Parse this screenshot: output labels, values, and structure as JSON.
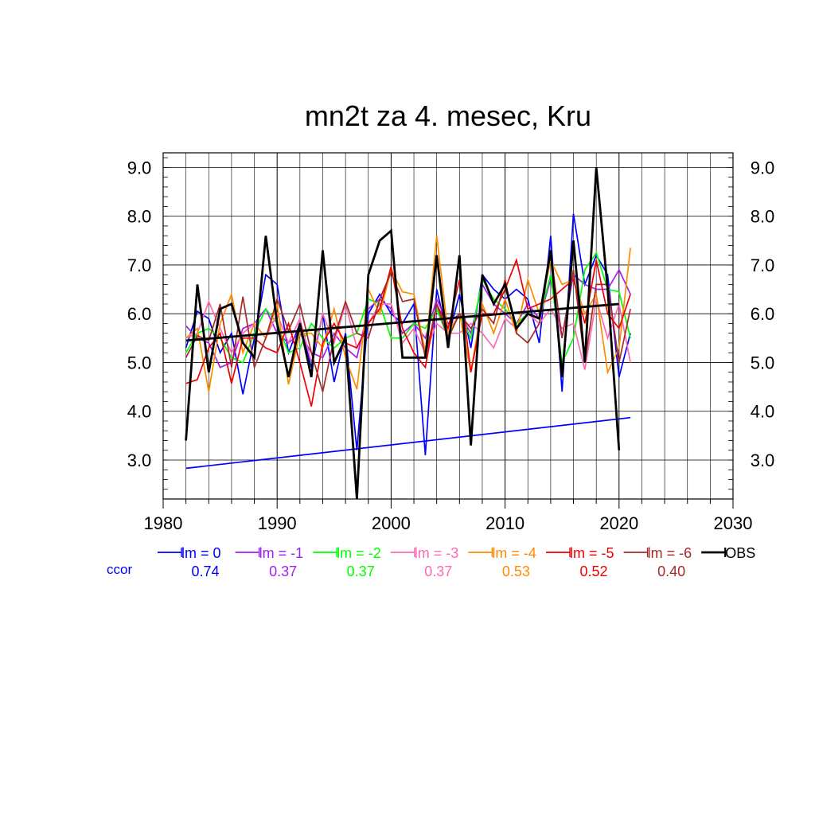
{
  "chart_data": {
    "type": "line",
    "title": "mn2t za 4. mesec, Kru",
    "xlabel": "",
    "ylabel": "",
    "xlim": [
      1980,
      2030
    ],
    "ylim": [
      2.2,
      9.3
    ],
    "x_ticks": [
      "1980",
      "1990",
      "2000",
      "2010",
      "2020",
      "2030"
    ],
    "y_ticks": [
      "3.0",
      "4.0",
      "5.0",
      "6.0",
      "7.0",
      "8.0",
      "9.0"
    ],
    "grid": true,
    "legend_position": "bottom",
    "ccor_label": "ccor",
    "x": [
      1982,
      1983,
      1984,
      1985,
      1986,
      1987,
      1988,
      1989,
      1990,
      1991,
      1992,
      1993,
      1994,
      1995,
      1996,
      1997,
      1998,
      1999,
      2000,
      2001,
      2002,
      2003,
      2004,
      2005,
      2006,
      2007,
      2008,
      2009,
      2010,
      2011,
      2012,
      2013,
      2014,
      2015,
      2016,
      2017,
      2018,
      2019,
      2020,
      2021
    ],
    "series": [
      {
        "name": "lm = 0",
        "color": "#0000ff",
        "ccor": "0.74",
        "values": [
          5.3,
          6.05,
          5.9,
          5.2,
          5.6,
          4.35,
          5.5,
          6.8,
          6.6,
          5.2,
          5.8,
          4.9,
          6.0,
          4.6,
          5.6,
          3.2,
          6.0,
          6.4,
          6.0,
          5.8,
          6.2,
          3.1,
          6.5,
          5.5,
          6.4,
          5.3,
          6.8,
          6.5,
          6.3,
          6.5,
          6.3,
          5.4,
          7.6,
          4.4,
          8.05,
          6.6,
          7.2,
          6.8,
          4.7,
          5.6
        ],
        "trend": [
          2.83,
          3.87
        ]
      },
      {
        "name": "lm = -1",
        "color": "#a020f0",
        "ccor": "0.37",
        "values": [
          5.75,
          5.5,
          5.4,
          4.9,
          5.0,
          5.7,
          5.8,
          6.1,
          5.6,
          5.4,
          5.6,
          5.2,
          5.1,
          5.6,
          5.3,
          5.1,
          6.1,
          6.3,
          6.1,
          5.6,
          5.8,
          5.5,
          6.3,
          5.8,
          6.0,
          5.6,
          6.6,
          6.2,
          6.0,
          5.8,
          6.2,
          5.9,
          6.7,
          5.5,
          6.8,
          6.6,
          6.5,
          6.5,
          6.9,
          6.4
        ]
      },
      {
        "name": "lm = -2",
        "color": "#00ff00",
        "ccor": "0.37",
        "values": [
          5.2,
          5.6,
          5.7,
          5.5,
          5.1,
          5.0,
          5.6,
          6.1,
          5.8,
          5.2,
          5.3,
          5.8,
          5.5,
          5.3,
          5.5,
          5.6,
          6.3,
          6.2,
          5.5,
          5.5,
          5.8,
          5.7,
          6.1,
          5.5,
          6.0,
          5.5,
          6.7,
          6.3,
          6.1,
          5.8,
          6.0,
          5.9,
          6.8,
          5.0,
          5.5,
          6.9,
          7.25,
          6.5,
          6.45,
          5.5
        ]
      },
      {
        "name": "lm = -3",
        "color": "#ff69b4",
        "ccor": "0.37",
        "values": [
          5.5,
          5.6,
          6.25,
          5.7,
          5.2,
          5.6,
          5.8,
          5.5,
          6.0,
          5.4,
          5.9,
          5.0,
          6.0,
          5.4,
          6.2,
          5.3,
          5.8,
          6.2,
          6.2,
          5.4,
          5.7,
          5.2,
          5.8,
          5.6,
          5.6,
          5.8,
          5.6,
          5.3,
          5.9,
          5.7,
          6.0,
          5.8,
          6.1,
          5.7,
          5.8,
          4.85,
          6.3,
          5.5,
          6.2,
          5.0
        ]
      },
      {
        "name": "lm = -4",
        "color": "#ff8c00",
        "ccor": "0.53",
        "values": [
          5.5,
          5.7,
          4.4,
          5.8,
          6.4,
          5.2,
          5.8,
          5.5,
          6.2,
          4.55,
          5.6,
          5.6,
          5.3,
          6.1,
          5.1,
          4.45,
          6.5,
          6.0,
          6.9,
          6.45,
          6.4,
          5.2,
          7.6,
          5.6,
          6.0,
          4.8,
          6.2,
          5.6,
          6.3,
          5.6,
          6.7,
          6.0,
          7.1,
          6.6,
          6.7,
          6.0,
          6.4,
          4.8,
          5.3,
          7.35
        ]
      },
      {
        "name": "lm = -5",
        "color": "#ee0000",
        "ccor": "0.52",
        "values": [
          4.57,
          4.65,
          5.3,
          5.6,
          4.57,
          5.5,
          5.5,
          5.3,
          5.2,
          5.8,
          5.0,
          4.1,
          5.4,
          5.8,
          5.4,
          5.3,
          5.8,
          6.1,
          6.97,
          5.7,
          5.2,
          4.9,
          6.2,
          5.7,
          6.7,
          4.8,
          6.0,
          6.0,
          6.5,
          7.1,
          6.1,
          6.2,
          6.3,
          6.5,
          6.7,
          5.8,
          7.1,
          6.0,
          5.7,
          6.4
        ]
      },
      {
        "name": "lm = -6",
        "color": "#a52a2a",
        "ccor": "0.40",
        "values": [
          5.1,
          5.55,
          5.45,
          6.2,
          4.9,
          6.35,
          4.9,
          5.5,
          6.3,
          5.65,
          6.2,
          5.2,
          4.4,
          5.5,
          6.25,
          5.6,
          5.5,
          6.3,
          6.85,
          6.25,
          6.3,
          5.1,
          6.2,
          5.5,
          6.0,
          5.7,
          6.1,
          5.8,
          6.7,
          5.6,
          5.4,
          5.8,
          7.25,
          5.5,
          6.9,
          5.0,
          6.6,
          6.6,
          5.0,
          6.1
        ]
      },
      {
        "name": "OBS",
        "color": "#000000",
        "ccor": "",
        "values": [
          3.4,
          6.6,
          4.8,
          6.1,
          6.2,
          5.4,
          5.1,
          7.6,
          5.8,
          4.7,
          5.8,
          4.7,
          7.3,
          5.0,
          5.5,
          2.2,
          6.8,
          7.5,
          7.7,
          5.1,
          5.1,
          5.1,
          7.2,
          5.3,
          7.2,
          3.3,
          6.8,
          6.2,
          6.6,
          5.7,
          6.0,
          5.9,
          7.3,
          4.7,
          7.5,
          5.0,
          9.0,
          6.5,
          3.2,
          null
        ],
        "trend": [
          5.45,
          6.2
        ]
      }
    ]
  }
}
